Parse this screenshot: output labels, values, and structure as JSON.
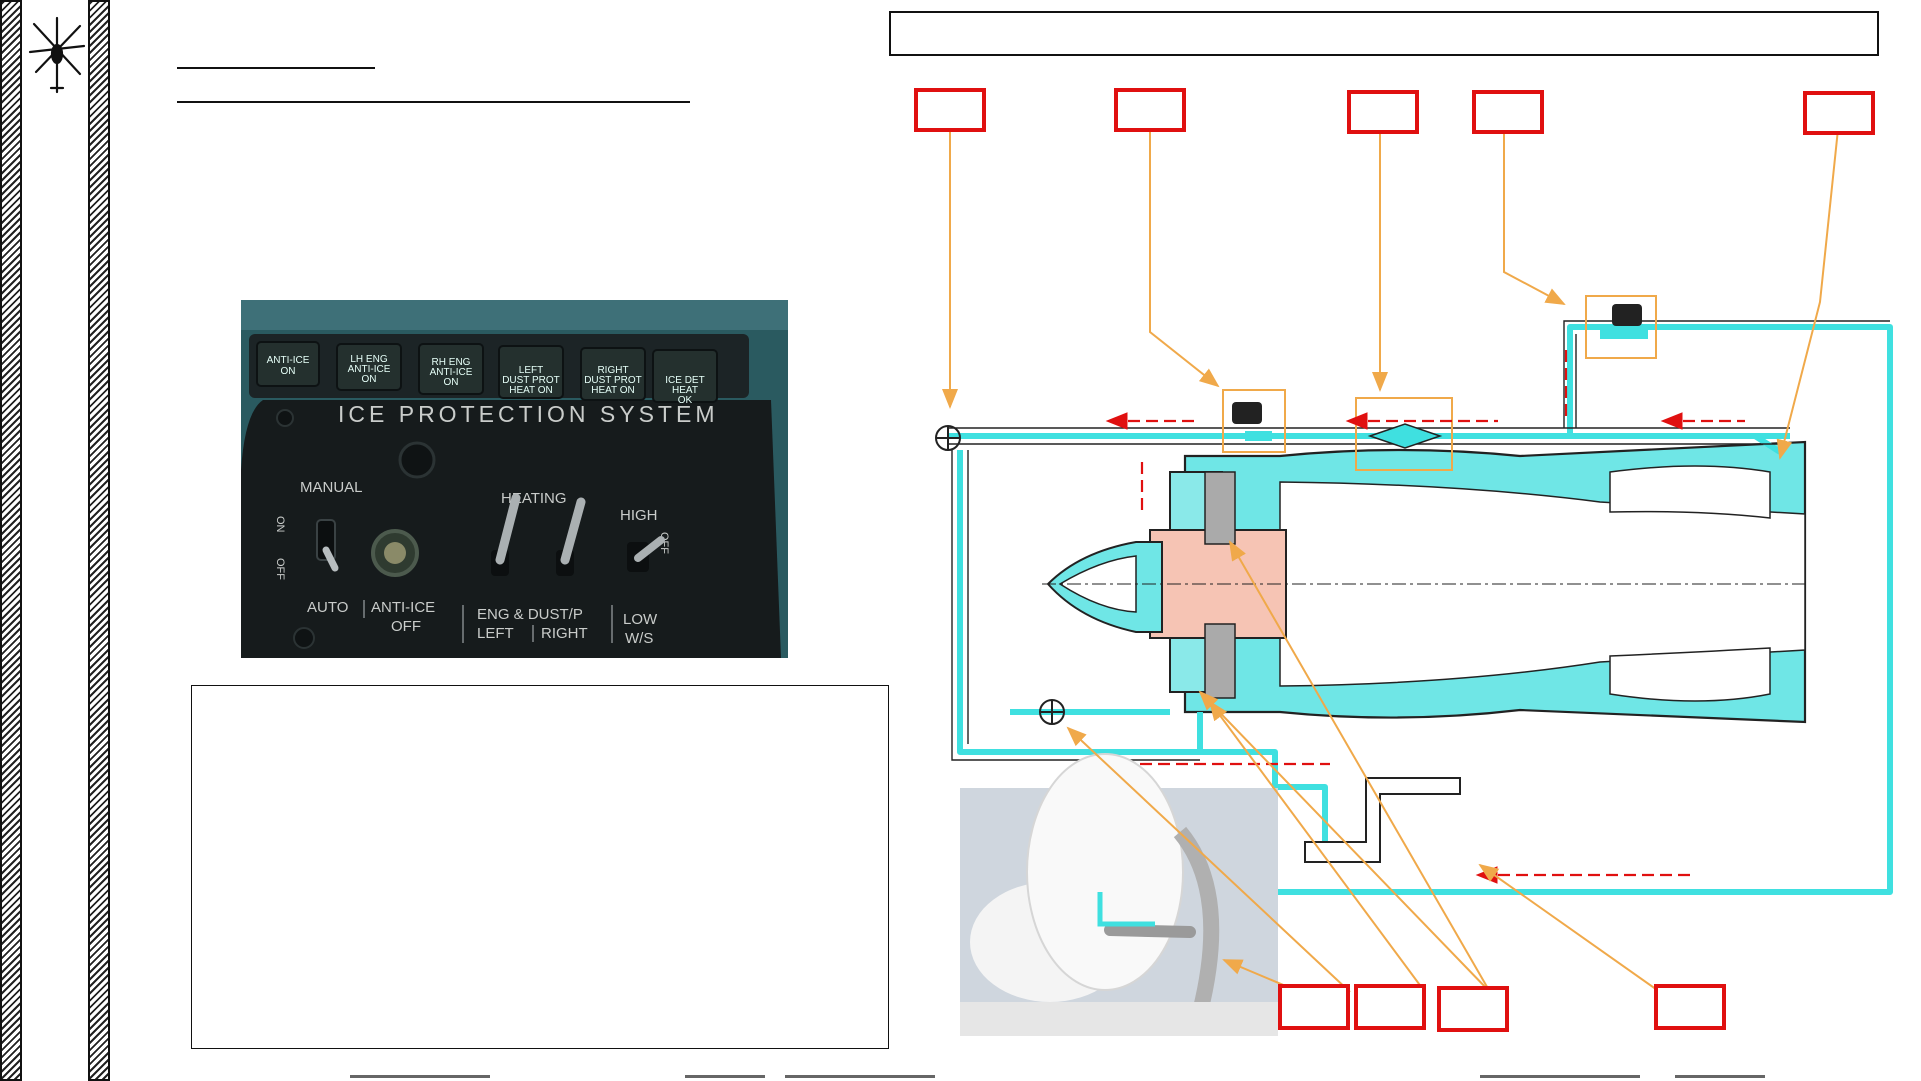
{
  "panel": {
    "lamps": [
      [
        "ANTI-ICE",
        "ON"
      ],
      [
        "LH ENG",
        "ANTI-ICE",
        "ON"
      ],
      [
        "RH ENG",
        "ANTI-ICE",
        "ON"
      ],
      [
        "LEFT",
        "DUST PROT",
        "HEAT ON"
      ],
      [
        "RIGHT",
        "DUST PROT",
        "HEAT ON"
      ],
      [
        "ICE DET",
        "HEAT",
        "OK"
      ]
    ],
    "title": "ICE PROTECTION SYSTEM",
    "manual": "MANUAL",
    "on": "ON",
    "off_vertical": "OFF",
    "heating": "HEATING",
    "high": "HIGH",
    "off_right": "OFF",
    "auto": "AUTO",
    "anti_ice": "ANTI-ICE",
    "anti_ice_off": "OFF",
    "eng_dust": "ENG & DUST/P",
    "left": "LEFT",
    "right": "RIGHT",
    "low": "LOW",
    "ws": "W/S"
  },
  "colors": {
    "callout_box": "#e01010",
    "leader_line": "#f0a94a",
    "duct": "#3fe0e0",
    "flow_arrow": "#e01010",
    "hatch": "#222222"
  }
}
